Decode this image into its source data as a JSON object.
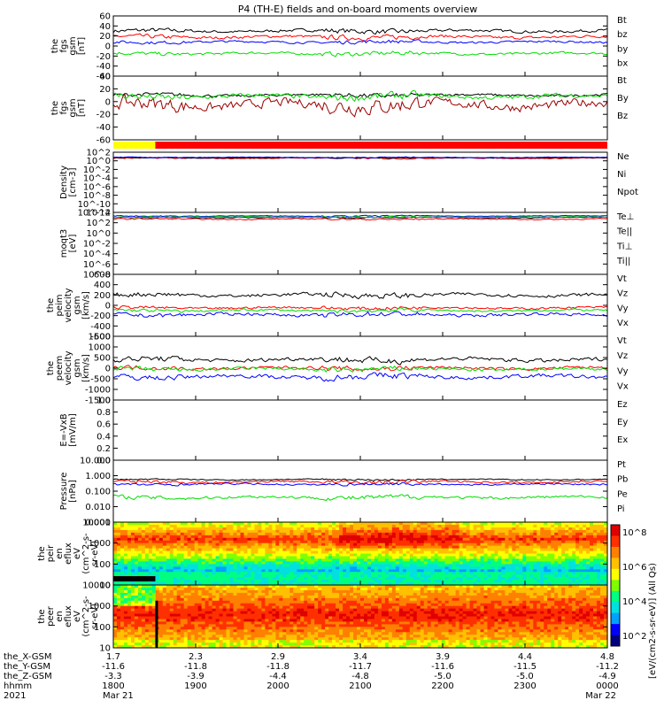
{
  "title": "P4 (TH-E) fields and on-board moments overview",
  "colors": {
    "black": "#000000",
    "red": "#ff0000",
    "green": "#00dd00",
    "blue": "#0000ff",
    "darkred": "#990000",
    "yellow": "#ffff00"
  },
  "chart_data": [
    {
      "type": "line",
      "name": "fgs",
      "ylabel": [
        "the",
        "fgs",
        "gsm",
        "[nT]"
      ],
      "ylim": [
        -60,
        60
      ],
      "ticks": [
        "60",
        "40",
        "20",
        "0",
        "-20",
        "-40",
        "-60"
      ],
      "series": [
        {
          "name": "Bt",
          "color": "black",
          "base": 30,
          "amp": 8
        },
        {
          "name": "bz",
          "color": "red",
          "base": 18,
          "amp": 8
        },
        {
          "name": "by",
          "color": "green",
          "base": -15,
          "amp": 7
        },
        {
          "name": "bx",
          "color": "blue",
          "base": 8,
          "amp": 6
        }
      ]
    },
    {
      "type": "line",
      "name": "fgs_dsl",
      "ylabel": [
        "the",
        "fgs",
        "gsm",
        "[nT]"
      ],
      "ylim": [
        -60,
        40
      ],
      "ticks": [
        "40",
        "20",
        "0",
        "-20",
        "-40",
        "-60"
      ],
      "series": [
        {
          "name": "Bt",
          "color": "black",
          "base": 10,
          "amp": 6
        },
        {
          "name": "By",
          "color": "darkred",
          "base": -5,
          "amp": 20
        },
        {
          "name": "Bz",
          "color": "green",
          "base": 8,
          "amp": 10
        }
      ]
    },
    {
      "type": "bar",
      "name": "mode"
    },
    {
      "type": "line",
      "name": "density",
      "ylabel": [
        "Density",
        "[cm-3]"
      ],
      "ylim": [
        -12,
        2
      ],
      "log": true,
      "ticks": [
        "10^2",
        "10^0",
        "10^-2",
        "10^-4",
        "10^-6",
        "10^-8",
        "10^-10",
        "10^-12"
      ],
      "series": [
        {
          "name": "Ne",
          "color": "red",
          "base": 0.6,
          "amp": 0.3
        },
        {
          "name": "Ni",
          "color": "black",
          "base": 0.7,
          "amp": 0.2
        },
        {
          "name": "Npot",
          "color": "blue",
          "base": 0.8,
          "amp": 0.2
        }
      ]
    },
    {
      "type": "line",
      "name": "temperature",
      "ylabel": [
        "moqt3",
        "[eV]"
      ],
      "ylim": [
        -8,
        4
      ],
      "log": true,
      "ticks": [
        "10^4",
        "10^2",
        "10^0",
        "10^-2",
        "10^-4",
        "10^-6",
        "10^-8"
      ],
      "series": [
        {
          "name": "Te⊥",
          "color": "red",
          "base": 2.7,
          "amp": 0.3
        },
        {
          "name": "Te||",
          "color": "black",
          "base": 3.0,
          "amp": 0.2
        },
        {
          "name": "Ti⊥",
          "color": "blue",
          "base": 3.3,
          "amp": 0.2
        },
        {
          "name": "Ti||",
          "color": "green",
          "base": 3.1,
          "amp": 0.2
        }
      ]
    },
    {
      "type": "line",
      "name": "vi",
      "ylabel": [
        "the",
        "peim",
        "velocity",
        "gsm",
        "[km/s]"
      ],
      "ylim": [
        -600,
        600
      ],
      "ticks": [
        "600",
        "400",
        "200",
        "0",
        "-200",
        "-400",
        "-600"
      ],
      "series": [
        {
          "name": "Vt",
          "color": "black",
          "base": 200,
          "amp": 90
        },
        {
          "name": "Vz",
          "color": "red",
          "base": -50,
          "amp": 60
        },
        {
          "name": "Vy",
          "color": "green",
          "base": -100,
          "amp": 60
        },
        {
          "name": "Vx",
          "color": "blue",
          "base": -180,
          "amp": 80
        }
      ]
    },
    {
      "type": "line",
      "name": "ve",
      "ylabel": [
        "the",
        "peem",
        "velocity",
        "gsm",
        "[km/s]"
      ],
      "ylim": [
        -1500,
        1500
      ],
      "ticks": [
        "1500",
        "1000",
        "500",
        "0",
        "-500",
        "-1000",
        "-1500"
      ],
      "series": [
        {
          "name": "Vt",
          "color": "black",
          "base": 400,
          "amp": 250
        },
        {
          "name": "Vz",
          "color": "red",
          "base": 0,
          "amp": 200
        },
        {
          "name": "Vy",
          "color": "green",
          "base": -50,
          "amp": 200
        },
        {
          "name": "Vx",
          "color": "blue",
          "base": -400,
          "amp": 250
        }
      ]
    },
    {
      "type": "line",
      "name": "efield",
      "ylabel": [
        "E=-VxB",
        "[mV/m]"
      ],
      "ylim": [
        0,
        1
      ],
      "ticks": [
        "1.0",
        "0.8",
        "0.6",
        "0.4",
        "0.2",
        "0.0"
      ],
      "series": [
        {
          "name": "Ez",
          "color": "red"
        },
        {
          "name": "Ey",
          "color": "green"
        },
        {
          "name": "Ex",
          "color": "blue"
        }
      ]
    },
    {
      "type": "line",
      "name": "pressure",
      "ylabel": [
        "Pressure",
        "[nPa]"
      ],
      "ylim": [
        -3,
        1
      ],
      "log": true,
      "ticks": [
        "10.000",
        "1.000",
        "0.100",
        "0.010",
        "0.001"
      ],
      "series": [
        {
          "name": "Pt",
          "color": "black",
          "base": -0.25,
          "amp": 0.1
        },
        {
          "name": "Pb",
          "color": "red",
          "base": -0.4,
          "amp": 0.2
        },
        {
          "name": "Pe",
          "color": "green",
          "base": -1.4,
          "amp": 0.25
        },
        {
          "name": "Pi",
          "color": "blue",
          "base": -0.55,
          "amp": 0.15
        }
      ]
    },
    {
      "type": "heatmap",
      "name": "peir",
      "ylabel": [
        "the",
        "peir",
        "en",
        "eflux",
        "eV",
        "(cm^2-s-",
        "sr-eV)"
      ],
      "ticks": [
        "10000",
        "1000",
        "100",
        "10"
      ]
    },
    {
      "type": "heatmap",
      "name": "peer",
      "ylabel": [
        "the",
        "peer",
        "en",
        "eflux",
        "eV",
        "(cm^2-s-",
        "sr-eV)"
      ],
      "ticks": [
        "10000",
        "1000",
        "100",
        "10"
      ]
    }
  ],
  "colorbar": {
    "label": "[eV/(cm2-s-sr-eV)] (All Qs)",
    "ticks": [
      "10^8",
      "10^6",
      "10^4",
      "10^2"
    ]
  },
  "xaxis": {
    "rows": [
      {
        "label": "the_X-GSM",
        "values": [
          "1.7",
          "2.3",
          "2.9",
          "3.4",
          "3.9",
          "4.4",
          "4.8"
        ]
      },
      {
        "label": "the_Y-GSM",
        "values": [
          "-11.6",
          "-11.8",
          "-11.8",
          "-11.7",
          "-11.6",
          "-11.5",
          "-11.2"
        ]
      },
      {
        "label": "the_Z-GSM",
        "values": [
          "-3.3",
          "-3.9",
          "-4.4",
          "-4.8",
          "-5.0",
          "-5.0",
          "-4.9"
        ]
      },
      {
        "label": "hhmm",
        "values": [
          "1800",
          "1900",
          "2000",
          "2100",
          "2200",
          "2300",
          "0000"
        ]
      },
      {
        "label": "2021",
        "values": [
          "Mar 21",
          "",
          "",
          "",
          "",
          "",
          "Mar 22"
        ]
      }
    ]
  }
}
